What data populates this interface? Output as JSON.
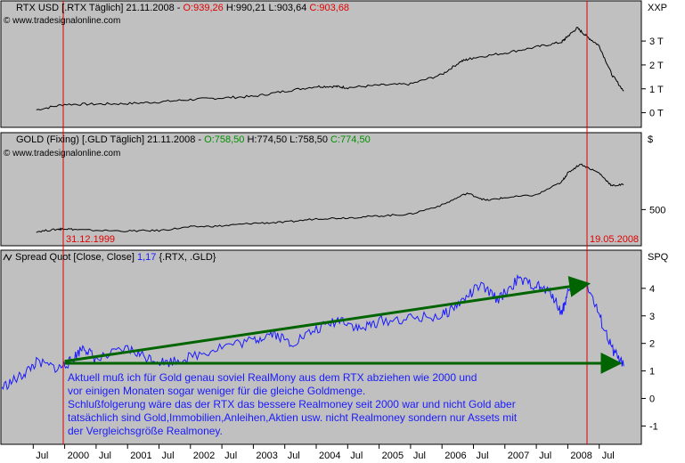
{
  "chart_data": [
    {
      "type": "line",
      "header": {
        "symbol": "RTX USD [.RTX  Täglich] 21.11.2008 - ",
        "open": "O:939,26",
        "hl": " H:990,21 L:903,64 ",
        "close": "C:903,68"
      },
      "watermark": "© www.tradesignalonline.com",
      "right_label": "XXP",
      "y_ticks": [
        "3 T",
        "2 T",
        "1 T",
        "0 T"
      ],
      "ylim": [
        -0.5,
        3.6
      ],
      "line_color": "#000000",
      "series": [
        {
          "x": [
            1999.55,
            2000.0,
            2000.5,
            2001.0,
            2001.5,
            2002.0,
            2002.5,
            2003.0,
            2003.5,
            2004.0,
            2004.3,
            2004.5,
            2005.0,
            2005.5,
            2006.0,
            2006.3,
            2006.5,
            2007.0,
            2007.5,
            2007.9,
            2008.0,
            2008.15,
            2008.3,
            2008.5,
            2008.7,
            2008.89
          ],
          "y": [
            0.12,
            0.35,
            0.36,
            0.38,
            0.45,
            0.55,
            0.62,
            0.68,
            0.9,
            1.1,
            1.1,
            1.05,
            1.15,
            1.2,
            1.6,
            2.15,
            2.3,
            2.5,
            2.75,
            2.95,
            3.2,
            3.55,
            3.2,
            2.8,
            1.6,
            0.9
          ]
        }
      ]
    },
    {
      "type": "line",
      "header": {
        "symbol": "GOLD (Fixing) [.GLD  Täglich] 21.11.2008 - ",
        "open": "O:758,50",
        "hl": " H:774,50 L:758,50 ",
        "close": "C:774,50"
      },
      "watermark": "© www.tradesignalonline.com",
      "right_label": "$",
      "y_ticks": [
        "500"
      ],
      "ylim": [
        240,
        1060
      ],
      "line_color": "#000000",
      "date_labels": [
        "31.12.1999",
        "19.05.2008"
      ],
      "series": [
        {
          "x": [
            1999.55,
            1999.9,
            2000.0,
            2000.3,
            2001.0,
            2001.5,
            2002.0,
            2002.5,
            2003.0,
            2003.5,
            2004.0,
            2004.5,
            2005.0,
            2005.5,
            2006.0,
            2006.4,
            2006.7,
            2007.0,
            2007.5,
            2007.9,
            2008.0,
            2008.2,
            2008.5,
            2008.7,
            2008.89
          ],
          "y": [
            258,
            285,
            290,
            275,
            265,
            270,
            310,
            320,
            350,
            360,
            400,
            410,
            430,
            450,
            550,
            680,
            600,
            630,
            660,
            800,
            900,
            1000,
            900,
            760,
            774
          ]
        }
      ]
    },
    {
      "type": "line",
      "header": {
        "symbol": "Spread Quot [Close, Close] ",
        "value": "1,17",
        "rest": " {.RTX, .GLD}"
      },
      "right_label": "SPQ",
      "y_ticks": [
        "4",
        "3",
        "2",
        "1",
        "0",
        "-1"
      ],
      "ylim": [
        -1.6,
        4.9
      ],
      "line_color": "#1a1aff",
      "x_tick_labels": [
        "Jul",
        "2000",
        "Jul",
        "2001",
        "Jul",
        "2002",
        "Jul",
        "2003",
        "Jul",
        "2004",
        "Jul",
        "2005",
        "Jul",
        "2006",
        "Jul",
        "2007",
        "Jul",
        "2008",
        "Jul"
      ],
      "series": [
        {
          "x": [
            1999.0,
            1999.3,
            1999.55,
            1999.9,
            2000.1,
            2000.3,
            2000.5,
            2001.0,
            2001.3,
            2001.6,
            2002.0,
            2002.5,
            2003.0,
            2003.3,
            2003.6,
            2004.0,
            2004.4,
            2004.7,
            2005.0,
            2005.5,
            2006.0,
            2006.3,
            2006.6,
            2006.9,
            2007.2,
            2007.5,
            2007.75,
            2007.9,
            2008.0,
            2008.3,
            2008.5,
            2008.7,
            2008.89
          ],
          "y": [
            0.4,
            0.8,
            1.3,
            1.1,
            1.35,
            1.9,
            1.4,
            1.8,
            1.5,
            1.3,
            1.5,
            1.9,
            2.1,
            2.4,
            2.0,
            2.5,
            2.9,
            2.5,
            2.8,
            2.9,
            3.0,
            3.5,
            4.1,
            3.6,
            4.3,
            4.1,
            3.8,
            3.1,
            3.8,
            4.2,
            3.0,
            1.8,
            1.17
          ]
        }
      ],
      "arrows": [
        {
          "x": [
            2000.0,
            2008.28
          ],
          "y": [
            1.35,
            4.15
          ]
        },
        {
          "x": [
            2000.0,
            2008.78
          ],
          "y": [
            1.28,
            1.28
          ]
        }
      ],
      "note": [
        "Aktuell muß ich für Gold genau soviel RealMony aus dem RTX abziehen wie 2000 und",
        "vor einigen Monaten sogar weniger für die gleiche Goldmenge.",
        "Schlußfolgerung wäre das der RTX das bessere Realmoney seit 2000 war und nicht Gold aber",
        "tatsächlich sind Gold,Immobilien,Anleihen,Aktien usw. nicht Realmoney sondern nur Assets mit",
        "der Vergleichsgröße Realmoney."
      ]
    }
  ],
  "colors": {
    "panel_bg": "#c0c0c0",
    "marker": "#e00000",
    "arrow": "#006400",
    "open": "#e00000",
    "close_red": "#e00000",
    "close_green": "#009000",
    "spread": "#1a1aff"
  }
}
